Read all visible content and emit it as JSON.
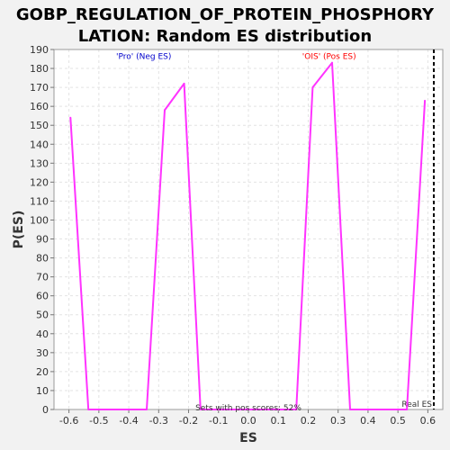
{
  "chart_data": {
    "type": "line",
    "title": [
      "GOBP_REGULATION_OF_PROTEIN_PHOSPHORY",
      "LATION: Random ES distribution"
    ],
    "xlabel": "ES",
    "ylabel": "P(ES)",
    "xlim": [
      -0.65,
      0.65
    ],
    "ylim": [
      0,
      190
    ],
    "xticks": [
      "-0.6",
      "-0.5",
      "-0.4",
      "-0.3",
      "-0.2",
      "-0.1",
      "0.0",
      "0.1",
      "0.2",
      "0.3",
      "0.4",
      "0.5",
      "0.6"
    ],
    "yticks": [
      "0",
      "10",
      "20",
      "30",
      "40",
      "50",
      "60",
      "70",
      "80",
      "90",
      "100",
      "110",
      "120",
      "130",
      "140",
      "150",
      "160",
      "170",
      "180",
      "190"
    ],
    "grid": true,
    "series": [
      {
        "color": "#ff33ff",
        "x": [
          -0.595,
          -0.535,
          -0.34,
          -0.28,
          -0.215,
          -0.16,
          0.16,
          0.215,
          0.28,
          0.34,
          0.53,
          0.59
        ],
        "y": [
          154,
          0,
          0,
          158,
          172,
          0,
          0,
          170,
          183,
          0,
          0,
          163
        ]
      }
    ],
    "real_es": {
      "x": 0.62,
      "label": "Real ES"
    },
    "annotations": [
      {
        "text": "'Pro' (Neg ES)",
        "color": "#0000cc",
        "x": -0.35,
        "y": 187
      },
      {
        "text": "'OIS' (Pos ES)",
        "color": "#ff0000",
        "x": 0.27,
        "y": 187
      },
      {
        "text": "Sets with pos scores: 52%",
        "color": "#333333",
        "x": 0.0,
        "y": 1.5
      }
    ]
  }
}
